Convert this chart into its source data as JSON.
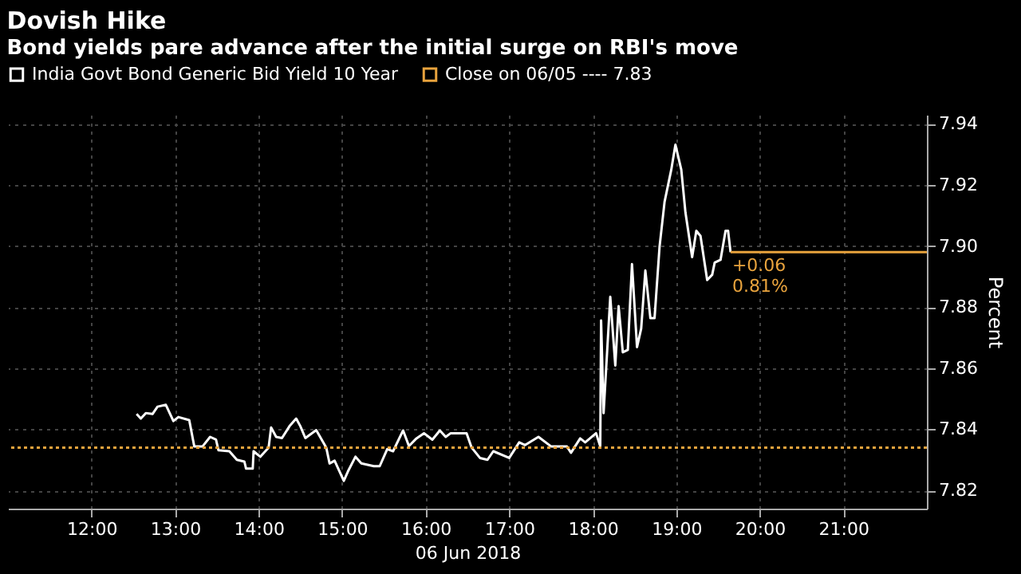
{
  "chart_data": {
    "type": "line",
    "title": "Dovish Hike",
    "subtitle": "Bond yields pare advance after the initial surge on RBI's move",
    "xlabel": "06 Jun 2018",
    "ylabel": "Percent",
    "xlim": [
      11,
      22
    ],
    "xticks": [
      {
        "value": 12,
        "label": "12:00"
      },
      {
        "value": 13,
        "label": "13:00"
      },
      {
        "value": 14,
        "label": "14:00"
      },
      {
        "value": 15,
        "label": "15:00"
      },
      {
        "value": 16,
        "label": "16:00"
      },
      {
        "value": 17,
        "label": "17:00"
      },
      {
        "value": 18,
        "label": "18:00"
      },
      {
        "value": 19,
        "label": "19:00"
      },
      {
        "value": 20,
        "label": "20:00"
      },
      {
        "value": 21,
        "label": "21:00"
      }
    ],
    "ylim": [
      7.814,
      7.943
    ],
    "yticks": [
      {
        "value": 7.82,
        "label": "7.82"
      },
      {
        "value": 7.84,
        "label": "7.84"
      },
      {
        "value": 7.86,
        "label": "7.86"
      },
      {
        "value": 7.88,
        "label": "7.88"
      },
      {
        "value": 7.9,
        "label": "7.90"
      },
      {
        "value": 7.92,
        "label": "7.92"
      },
      {
        "value": 7.94,
        "label": "7.94"
      }
    ],
    "grid": true,
    "legend": "top left",
    "marker": "none",
    "line_style": "solid",
    "series": [
      {
        "name": "India Govt Bond Generic Bid Yield 10 Year",
        "color": "#ffffff",
        "x": [
          12.54,
          12.59,
          12.65,
          12.73,
          12.79,
          12.89,
          12.98,
          13.04,
          13.17,
          13.23,
          13.33,
          13.42,
          13.49,
          13.52,
          13.65,
          13.74,
          13.83,
          13.85,
          13.93,
          13.94,
          14.02,
          14.12,
          14.15,
          14.21,
          14.28,
          14.37,
          14.45,
          14.5,
          14.56,
          14.69,
          14.81,
          14.85,
          14.91,
          15.02,
          15.07,
          15.16,
          15.23,
          15.38,
          15.45,
          15.54,
          15.61,
          15.73,
          15.8,
          15.89,
          15.98,
          16.08,
          16.17,
          16.24,
          16.3,
          16.49,
          16.55,
          16.65,
          16.74,
          16.81,
          17.0,
          17.12,
          17.19,
          17.35,
          17.5,
          17.69,
          17.74,
          17.85,
          17.91,
          18.04,
          18.09,
          18.1,
          18.13,
          18.21,
          18.27,
          18.31,
          18.36,
          18.42,
          18.47,
          18.53,
          18.58,
          18.63,
          18.69,
          18.74,
          18.8,
          18.86,
          18.94,
          18.99,
          19.06,
          19.11,
          19.19,
          19.24,
          19.29,
          19.37,
          19.43,
          19.46,
          19.53,
          19.59,
          19.62,
          19.65
        ],
        "values": [
          7.845,
          7.8435,
          7.8453,
          7.845,
          7.8474,
          7.848,
          7.8427,
          7.844,
          7.843,
          7.8344,
          7.8344,
          7.8375,
          7.8366,
          7.8331,
          7.8328,
          7.83,
          7.8294,
          7.8271,
          7.8271,
          7.8328,
          7.831,
          7.834,
          7.8406,
          7.8375,
          7.8371,
          7.841,
          7.8435,
          7.841,
          7.8371,
          7.8397,
          7.834,
          7.8288,
          7.8297,
          7.8231,
          7.8262,
          7.831,
          7.8288,
          7.8279,
          7.8279,
          7.8335,
          7.8328,
          7.8396,
          7.8345,
          7.837,
          7.8387,
          7.8366,
          7.8396,
          7.8375,
          7.8387,
          7.8387,
          7.834,
          7.8306,
          7.83,
          7.8328,
          7.8306,
          7.8357,
          7.8348,
          7.8375,
          7.8344,
          7.8344,
          7.8323,
          7.837,
          7.8357,
          7.8387,
          7.8344,
          7.8756,
          7.8453,
          7.8834,
          7.8609,
          7.8803,
          7.8652,
          7.866,
          7.8941,
          7.8669,
          7.873,
          7.892,
          7.8764,
          7.8764,
          7.8998,
          7.9145,
          7.925,
          7.9332,
          7.925,
          7.911,
          7.8964,
          7.905,
          7.9033,
          7.8889,
          7.8906,
          7.8946,
          7.8955,
          7.905,
          7.905,
          7.898
        ]
      },
      {
        "color": "#e8a33d",
        "x": [
          19.65,
          22
        ],
        "values": [
          7.898,
          7.898
        ]
      }
    ],
    "ref_lines": [
      {
        "axis": "y",
        "value": 7.834,
        "label": "Close on 06/05 ---- 7.83",
        "color": "#e8a33d",
        "line_style": "dotted"
      }
    ],
    "annotations": [
      "+0.06",
      "0.81%"
    ]
  }
}
